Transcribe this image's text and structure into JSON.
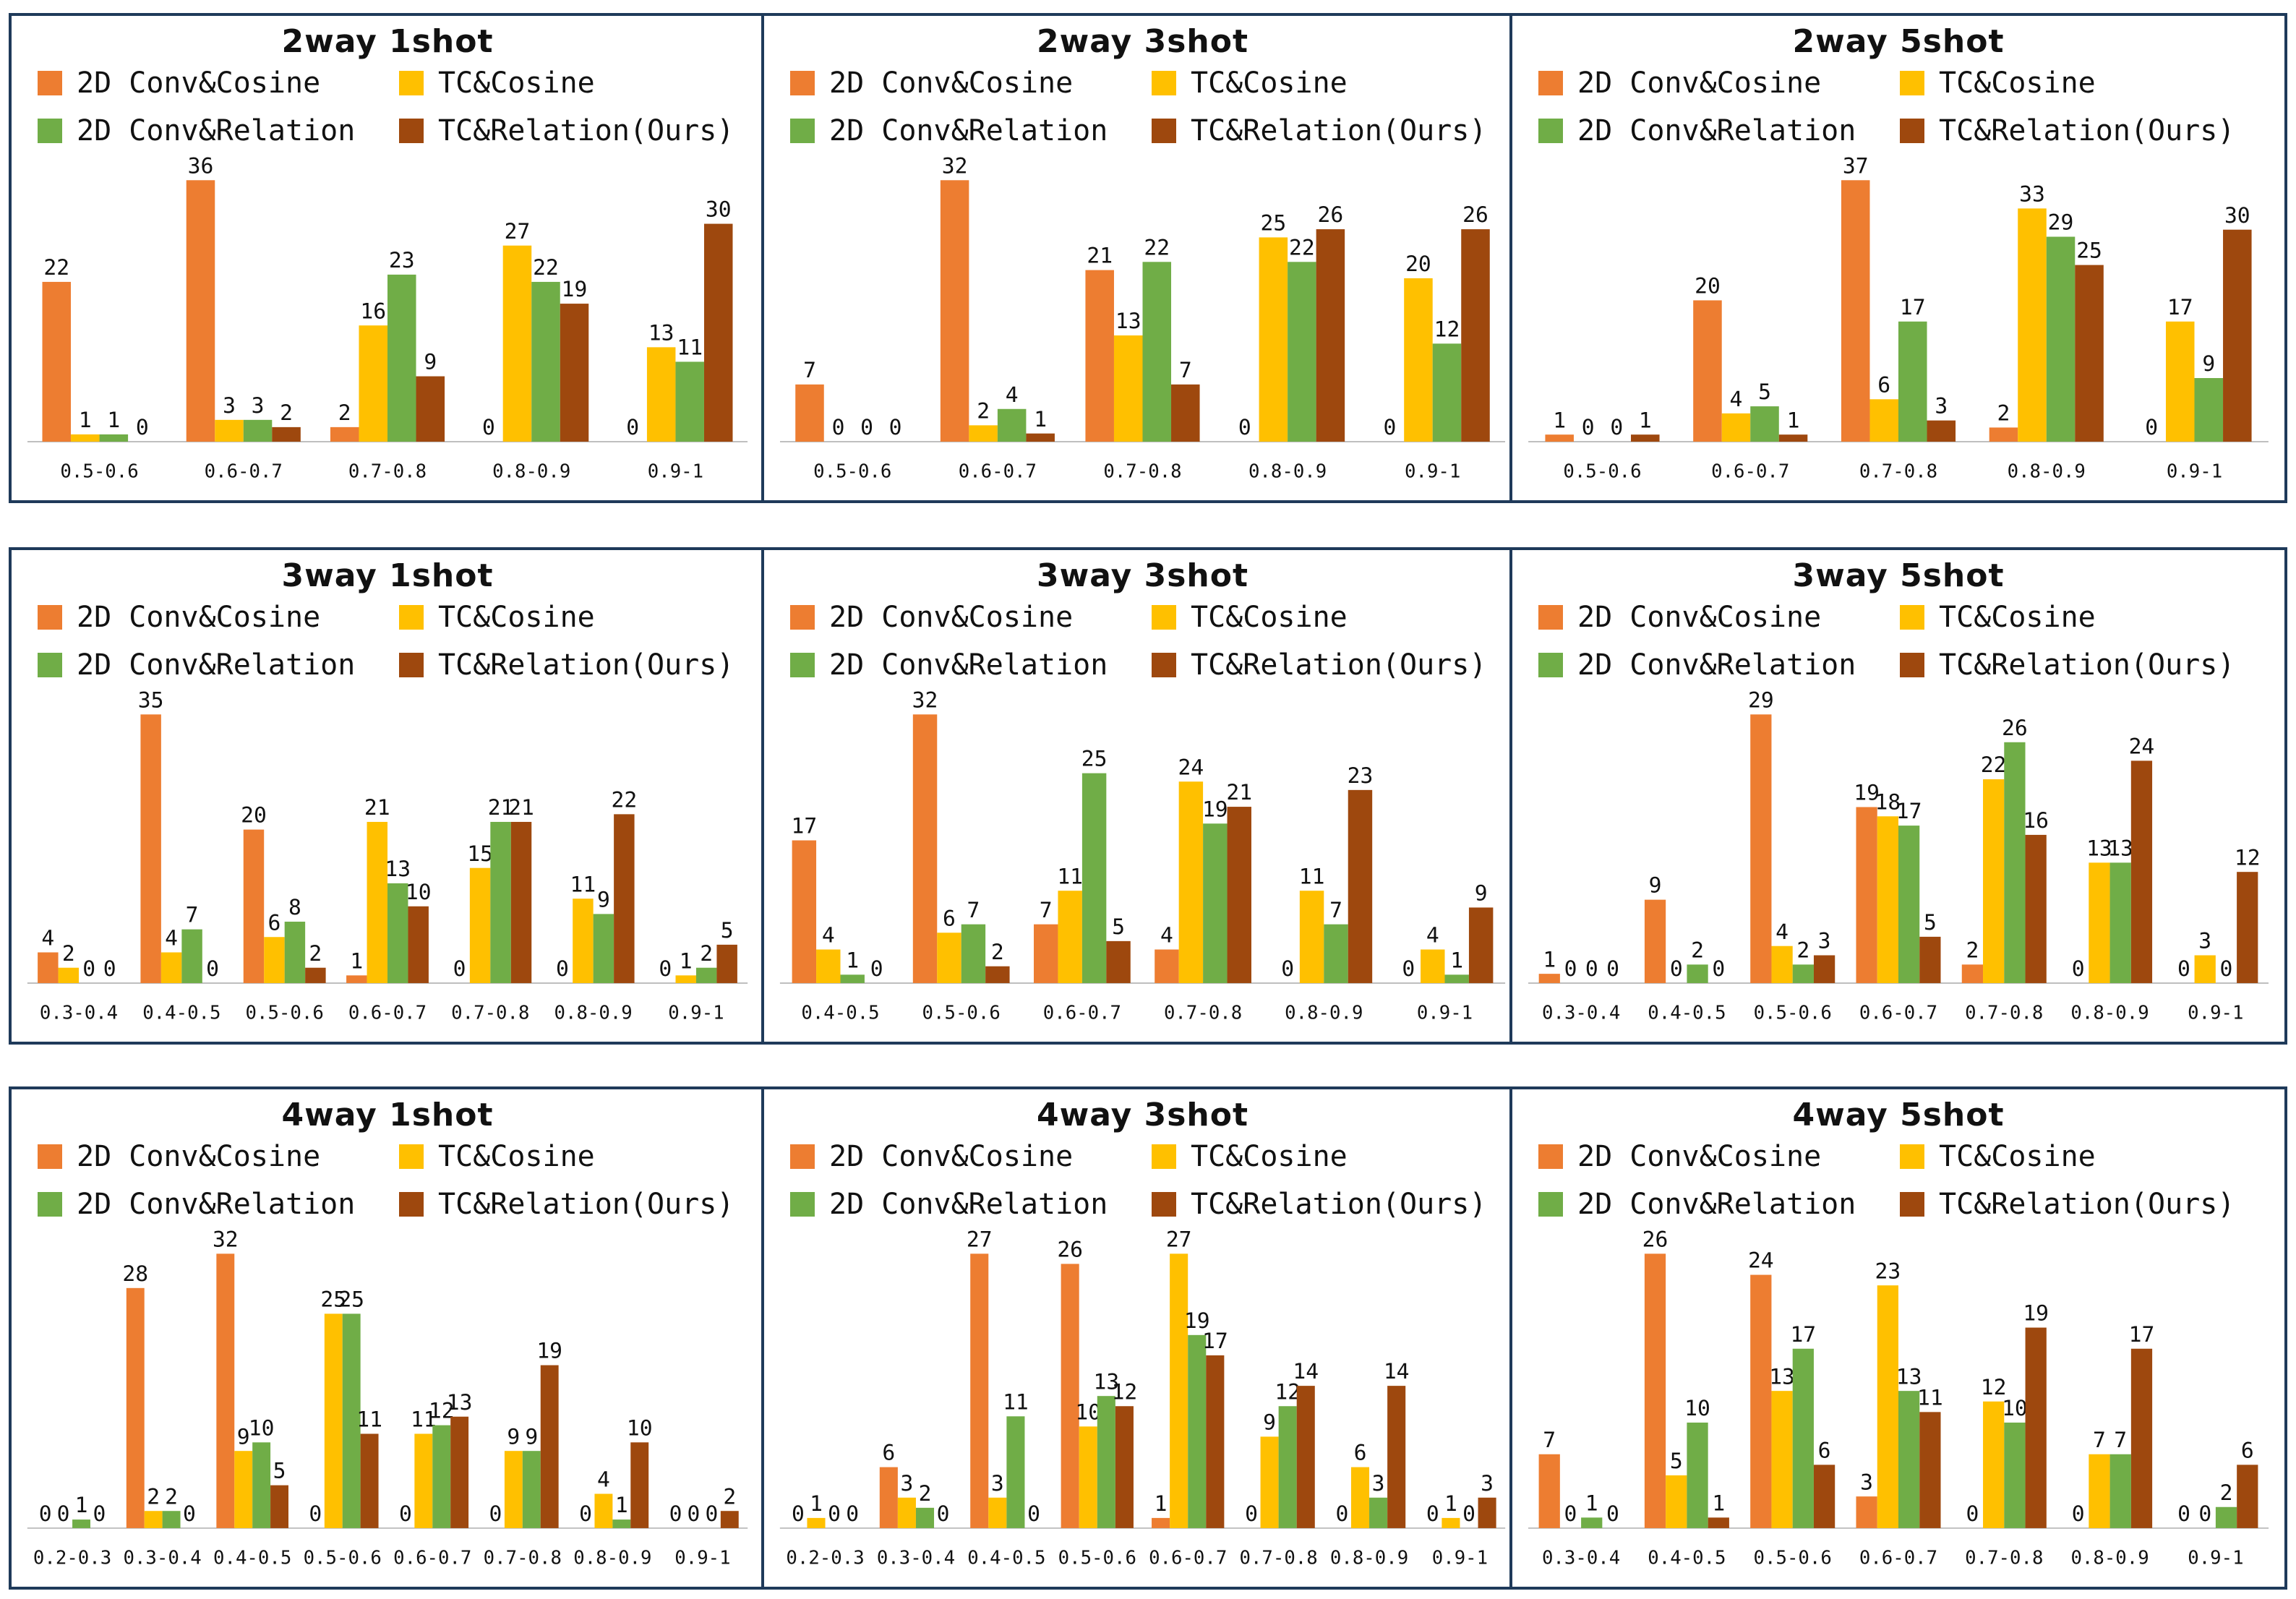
{
  "colors": {
    "2D Conv&Cosine": "#ED7D31",
    "TC&Cosine": "#FFC000",
    "2D Conv&Relation": "#70AD47",
    "TC&Relation(Ours)": "#9E480E",
    "panel_border": "#1F3A5A",
    "axis": "#BFBFBF"
  },
  "chart_data": [
    {
      "type": "bar",
      "title": "2way 1shot",
      "legend": [
        "2D Conv&Cosine",
        "TC&Cosine",
        "2D Conv&Relation",
        "TC&Relation(Ours)"
      ],
      "categories": [
        "0.5-0.6",
        "0.6-0.7",
        "0.7-0.8",
        "0.8-0.9",
        "0.9-1"
      ],
      "series": [
        {
          "name": "2D Conv&Cosine",
          "values": [
            22,
            36,
            2,
            0,
            0
          ]
        },
        {
          "name": "TC&Cosine",
          "values": [
            1,
            3,
            16,
            27,
            13
          ]
        },
        {
          "name": "2D Conv&Relation",
          "values": [
            1,
            3,
            23,
            22,
            11
          ]
        },
        {
          "name": "TC&Relation(Ours)",
          "values": [
            0,
            2,
            9,
            19,
            30
          ]
        }
      ],
      "ylim": [
        0,
        36
      ]
    },
    {
      "type": "bar",
      "title": "2way 3shot",
      "legend": [
        "2D Conv&Cosine",
        "TC&Cosine",
        "2D Conv&Relation",
        "TC&Relation(Ours)"
      ],
      "categories": [
        "0.5-0.6",
        "0.6-0.7",
        "0.7-0.8",
        "0.8-0.9",
        "0.9-1"
      ],
      "series": [
        {
          "name": "2D Conv&Cosine",
          "values": [
            7,
            32,
            21,
            0,
            0
          ]
        },
        {
          "name": "TC&Cosine",
          "values": [
            0,
            2,
            13,
            25,
            20
          ]
        },
        {
          "name": "2D Conv&Relation",
          "values": [
            0,
            4,
            22,
            22,
            12
          ]
        },
        {
          "name": "TC&Relation(Ours)",
          "values": [
            0,
            1,
            7,
            26,
            26
          ]
        }
      ],
      "ylim": [
        0,
        32
      ]
    },
    {
      "type": "bar",
      "title": "2way 5shot",
      "legend": [
        "2D Conv&Cosine",
        "TC&Cosine",
        "2D Conv&Relation",
        "TC&Relation(Ours)"
      ],
      "categories": [
        "0.5-0.6",
        "0.6-0.7",
        "0.7-0.8",
        "0.8-0.9",
        "0.9-1"
      ],
      "series": [
        {
          "name": "2D Conv&Cosine",
          "values": [
            1,
            20,
            37,
            2,
            0
          ]
        },
        {
          "name": "TC&Cosine",
          "values": [
            0,
            4,
            6,
            33,
            17
          ]
        },
        {
          "name": "2D Conv&Relation",
          "values": [
            0,
            5,
            17,
            29,
            9
          ]
        },
        {
          "name": "TC&Relation(Ours)",
          "values": [
            1,
            1,
            3,
            25,
            30
          ]
        }
      ],
      "ylim": [
        0,
        37
      ]
    },
    {
      "type": "bar",
      "title": "3way 1shot",
      "legend": [
        "2D Conv&Cosine",
        "TC&Cosine",
        "2D Conv&Relation",
        "TC&Relation(Ours)"
      ],
      "categories": [
        "0.3-0.4",
        "0.4-0.5",
        "0.5-0.6",
        "0.6-0.7",
        "0.7-0.8",
        "0.8-0.9",
        "0.9-1"
      ],
      "series": [
        {
          "name": "2D Conv&Cosine",
          "values": [
            4,
            35,
            20,
            1,
            0,
            0,
            0
          ]
        },
        {
          "name": "TC&Cosine",
          "values": [
            2,
            4,
            6,
            21,
            15,
            11,
            1
          ]
        },
        {
          "name": "2D Conv&Relation",
          "values": [
            0,
            7,
            8,
            13,
            21,
            9,
            2
          ]
        },
        {
          "name": "TC&Relation(Ours)",
          "values": [
            0,
            0,
            2,
            10,
            21,
            22,
            5
          ]
        }
      ],
      "ylim": [
        0,
        35
      ]
    },
    {
      "type": "bar",
      "title": "3way 3shot",
      "legend": [
        "2D Conv&Cosine",
        "TC&Cosine",
        "2D Conv&Relation",
        "TC&Relation(Ours)"
      ],
      "categories": [
        "0.4-0.5",
        "0.5-0.6",
        "0.6-0.7",
        "0.7-0.8",
        "0.8-0.9",
        "0.9-1"
      ],
      "series": [
        {
          "name": "2D Conv&Cosine",
          "values": [
            17,
            32,
            7,
            4,
            0,
            0
          ]
        },
        {
          "name": "TC&Cosine",
          "values": [
            4,
            6,
            11,
            24,
            11,
            4
          ]
        },
        {
          "name": "2D Conv&Relation",
          "values": [
            1,
            7,
            25,
            19,
            7,
            1
          ]
        },
        {
          "name": "TC&Relation(Ours)",
          "values": [
            0,
            2,
            5,
            21,
            23,
            9
          ]
        }
      ],
      "ylim": [
        0,
        32
      ]
    },
    {
      "type": "bar",
      "title": "3way 5shot",
      "legend": [
        "2D Conv&Cosine",
        "TC&Cosine",
        "2D Conv&Relation",
        "TC&Relation(Ours)"
      ],
      "categories": [
        "0.3-0.4",
        "0.4-0.5",
        "0.5-0.6",
        "0.6-0.7",
        "0.7-0.8",
        "0.8-0.9",
        "0.9-1"
      ],
      "series": [
        {
          "name": "2D Conv&Cosine",
          "values": [
            1,
            9,
            29,
            19,
            2,
            0,
            0
          ]
        },
        {
          "name": "TC&Cosine",
          "values": [
            0,
            0,
            4,
            18,
            22,
            13,
            3
          ]
        },
        {
          "name": "2D Conv&Relation",
          "values": [
            0,
            2,
            2,
            17,
            26,
            13,
            0
          ]
        },
        {
          "name": "TC&Relation(Ours)",
          "values": [
            0,
            0,
            3,
            5,
            16,
            24,
            12
          ]
        }
      ],
      "ylim": [
        0,
        29
      ]
    },
    {
      "type": "bar",
      "title": "4way 1shot",
      "legend": [
        "2D Conv&Cosine",
        "TC&Cosine",
        "2D Conv&Relation",
        "TC&Relation(Ours)"
      ],
      "categories": [
        "0.2-0.3",
        "0.3-0.4",
        "0.4-0.5",
        "0.5-0.6",
        "0.6-0.7",
        "0.7-0.8",
        "0.8-0.9",
        "0.9-1"
      ],
      "series": [
        {
          "name": "2D Conv&Cosine",
          "values": [
            0,
            28,
            32,
            0,
            0,
            0,
            0,
            0
          ]
        },
        {
          "name": "TC&Cosine",
          "values": [
            0,
            2,
            9,
            25,
            11,
            9,
            4,
            0
          ]
        },
        {
          "name": "2D Conv&Relation",
          "values": [
            1,
            2,
            10,
            25,
            12,
            9,
            1,
            0
          ]
        },
        {
          "name": "TC&Relation(Ours)",
          "values": [
            0,
            0,
            5,
            11,
            13,
            19,
            10,
            2
          ]
        }
      ],
      "ylim": [
        0,
        32
      ]
    },
    {
      "type": "bar",
      "title": "4way 3shot",
      "legend": [
        "2D Conv&Cosine",
        "TC&Cosine",
        "2D Conv&Relation",
        "TC&Relation(Ours)"
      ],
      "categories": [
        "0.2-0.3",
        "0.3-0.4",
        "0.4-0.5",
        "0.5-0.6",
        "0.6-0.7",
        "0.7-0.8",
        "0.8-0.9",
        "0.9-1"
      ],
      "series": [
        {
          "name": "2D Conv&Cosine",
          "values": [
            0,
            6,
            27,
            26,
            1,
            0,
            0,
            0
          ]
        },
        {
          "name": "TC&Cosine",
          "values": [
            1,
            3,
            3,
            10,
            27,
            9,
            6,
            1
          ]
        },
        {
          "name": "2D Conv&Relation",
          "values": [
            0,
            2,
            11,
            13,
            19,
            12,
            3,
            0
          ]
        },
        {
          "name": "TC&Relation(Ours)",
          "values": [
            0,
            0,
            0,
            12,
            17,
            14,
            14,
            3
          ]
        }
      ],
      "ylim": [
        0,
        27
      ]
    },
    {
      "type": "bar",
      "title": "4way 5shot",
      "legend": [
        "2D Conv&Cosine",
        "TC&Cosine",
        "2D Conv&Relation",
        "TC&Relation(Ours)"
      ],
      "categories": [
        "0.3-0.4",
        "0.4-0.5",
        "0.5-0.6",
        "0.6-0.7",
        "0.7-0.8",
        "0.8-0.9",
        "0.9-1"
      ],
      "series": [
        {
          "name": "2D Conv&Cosine",
          "values": [
            7,
            26,
            24,
            3,
            0,
            0,
            0
          ]
        },
        {
          "name": "TC&Cosine",
          "values": [
            0,
            5,
            13,
            23,
            12,
            7,
            0
          ]
        },
        {
          "name": "2D Conv&Relation",
          "values": [
            1,
            10,
            17,
            13,
            10,
            7,
            2
          ]
        },
        {
          "name": "TC&Relation(Ours)",
          "values": [
            0,
            1,
            6,
            11,
            19,
            17,
            6
          ]
        }
      ],
      "ylim": [
        0,
        26
      ]
    }
  ]
}
